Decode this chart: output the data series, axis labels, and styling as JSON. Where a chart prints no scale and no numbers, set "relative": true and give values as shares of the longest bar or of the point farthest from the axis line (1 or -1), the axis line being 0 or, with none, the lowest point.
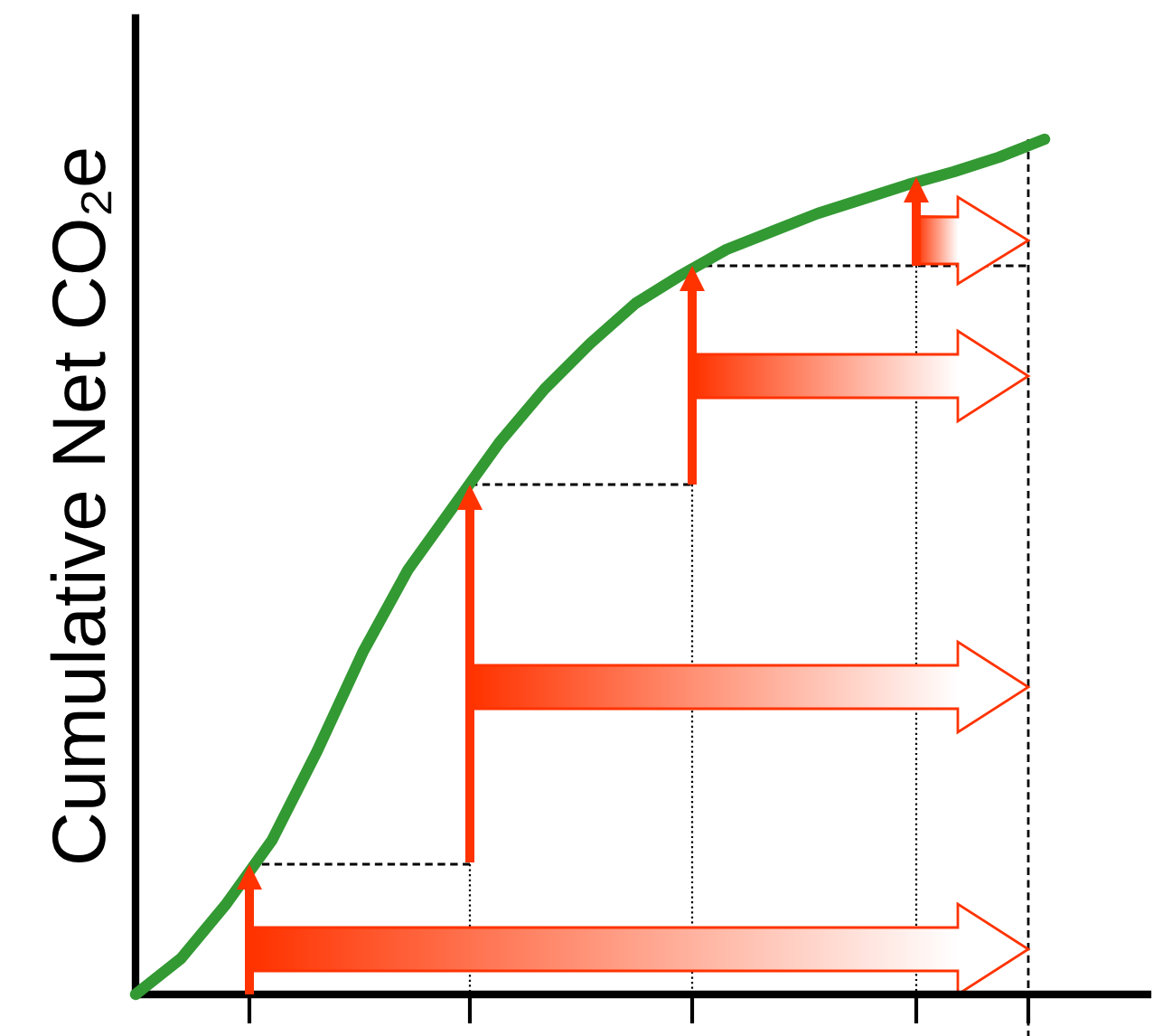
{
  "chart_data": {
    "type": "line",
    "ylabel": "Cumulative Net CO₂e",
    "relative": true,
    "grid": false,
    "legend": false,
    "categories": [
      null,
      null,
      null,
      null,
      null,
      null,
      null,
      null,
      null,
      null,
      null,
      null,
      null,
      null,
      null,
      null,
      null,
      null,
      null,
      null,
      null
    ],
    "series": [
      {
        "color": "#339933",
        "values": [
          0,
          0.042,
          0.106,
          0.18,
          0.285,
          0.4,
          0.497,
          0.571,
          0.645,
          0.708,
          0.761,
          0.808,
          0.841,
          0.871,
          0.892,
          0.913,
          0.93,
          0.947,
          0.962,
          0.979,
          1
        ]
      }
    ]
  }
}
